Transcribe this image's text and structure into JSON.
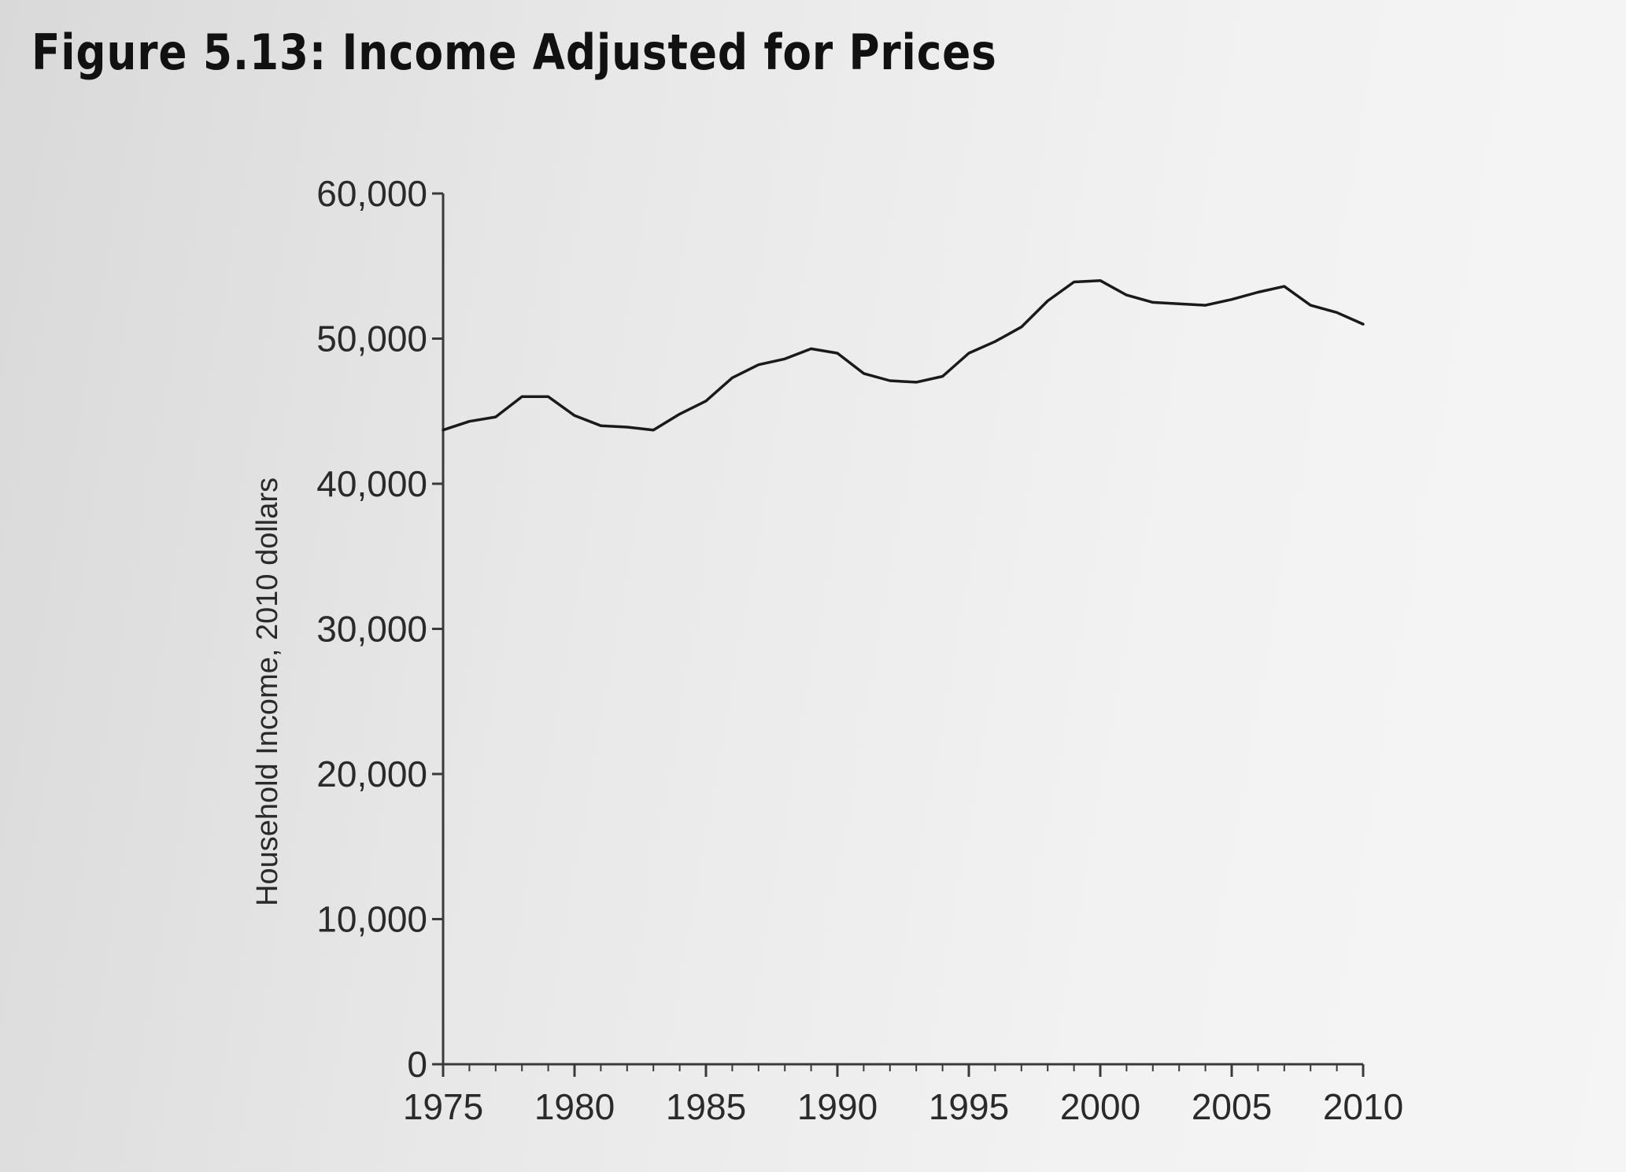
{
  "figure": {
    "title": "Figure 5.13: Income Adjusted for Prices"
  },
  "chart_data": {
    "type": "line",
    "title": "Figure 5.13: Income Adjusted for Prices",
    "xlabel": "",
    "ylabel": "Household Income, 2010 dollars",
    "xlim": [
      1975,
      2010
    ],
    "ylim": [
      0,
      60000
    ],
    "x_ticks": [
      1975,
      1980,
      1985,
      1990,
      1995,
      2000,
      2005,
      2010
    ],
    "x_tick_labels": [
      "1975",
      "1980",
      "1985",
      "1990",
      "1995",
      "2000",
      "2005",
      "2010"
    ],
    "y_ticks": [
      0,
      10000,
      20000,
      30000,
      40000,
      50000,
      60000
    ],
    "y_tick_labels": [
      "0",
      "10,000",
      "20,000",
      "30,000",
      "40,000",
      "50,000",
      "60,000"
    ],
    "grid": false,
    "line_color": "#1a1a1a",
    "series": [
      {
        "x": [
          1975,
          1976,
          1977,
          1978,
          1979,
          1980,
          1981,
          1982,
          1983,
          1984,
          1985,
          1986,
          1987,
          1988,
          1989,
          1990,
          1991,
          1992,
          1993,
          1994,
          1995,
          1996,
          1997,
          1998,
          1999,
          2000,
          2001,
          2002,
          2003,
          2004,
          2005,
          2006,
          2007,
          2008,
          2009,
          2010
        ],
        "values": [
          43700,
          44300,
          44600,
          46000,
          46000,
          44700,
          44000,
          43900,
          43700,
          44800,
          45700,
          47300,
          48200,
          48600,
          49300,
          49000,
          47600,
          47100,
          47000,
          47400,
          49000,
          49800,
          50800,
          52600,
          53900,
          54000,
          53000,
          52500,
          52400,
          52300,
          52700,
          53200,
          53600,
          52300,
          51800,
          51000
        ]
      }
    ]
  }
}
